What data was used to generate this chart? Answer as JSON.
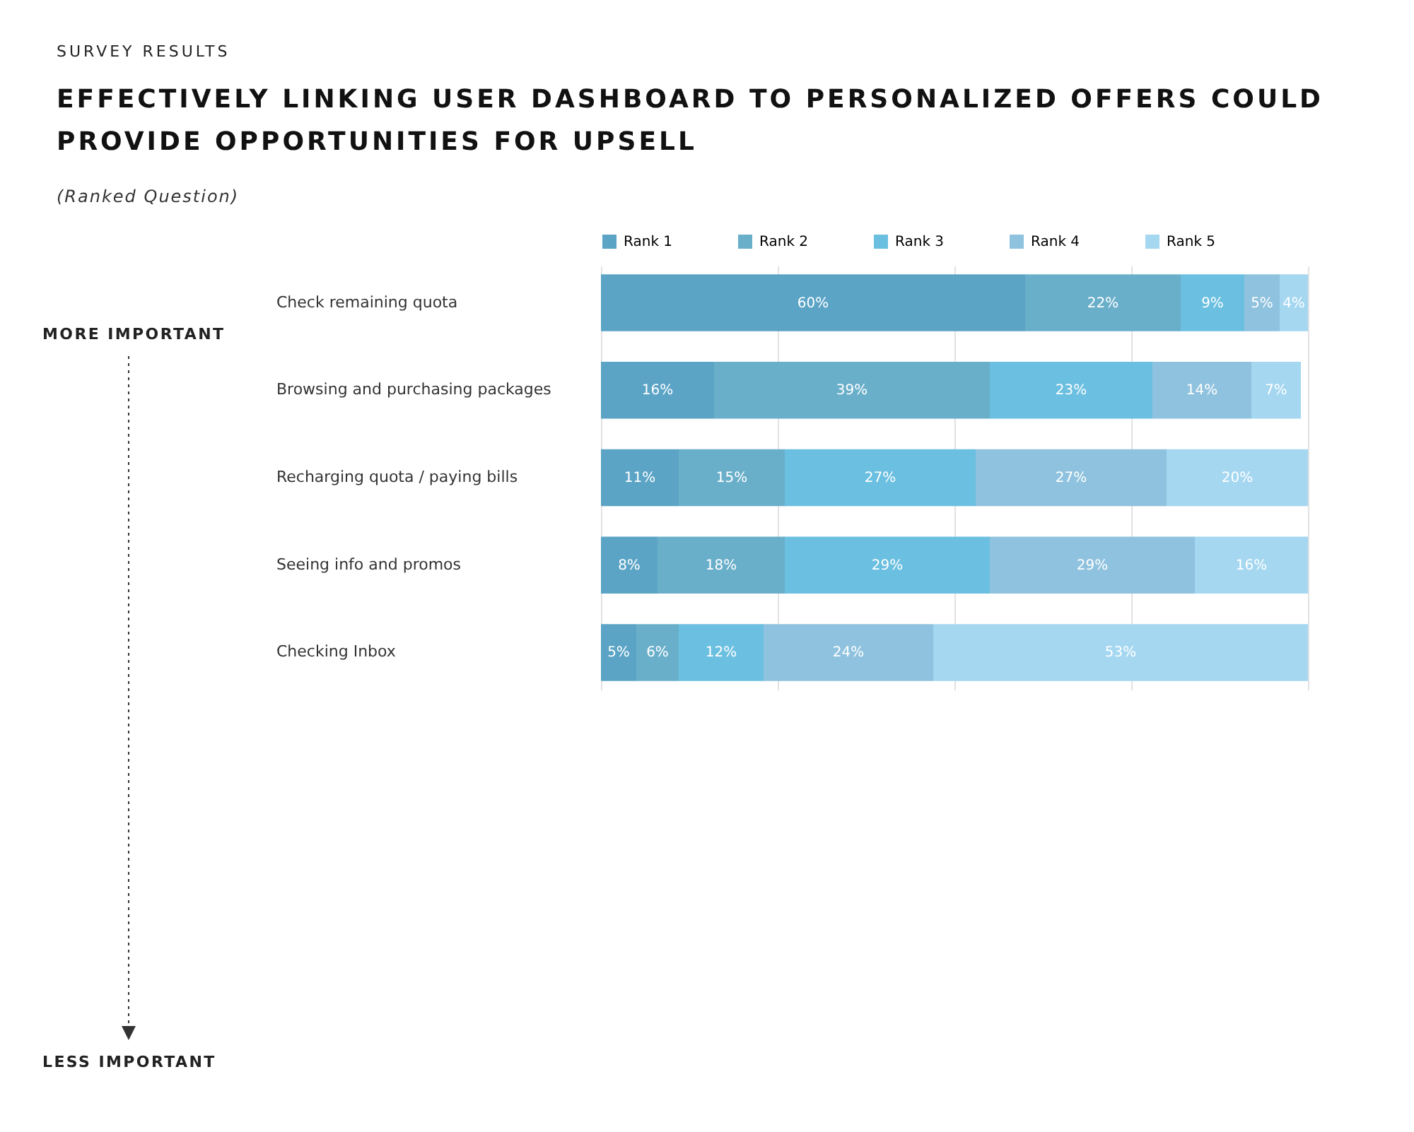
{
  "chart_data": {
    "type": "bar",
    "orientation": "horizontal",
    "stacked": true,
    "title": "EFFECTIVELY LINKING USER DASHBOARD TO PERSONALIZED OFFERS COULD PROVIDE OPPORTUNITIES FOR UPSELL",
    "subtitle": "(Ranked Question)",
    "annotations": [
      "SURVEY RESULTS",
      "MORE IMPORTANT",
      "LESS IMPORTANT"
    ],
    "categories": [
      "Check remaining quota",
      "Browsing and purchasing packages",
      "Recharging quota / paying bills",
      "Seeing info and promos",
      "Checking Inbox"
    ],
    "series": [
      {
        "name": "Rank 1",
        "color": "#5ba4c6",
        "values": [
          60,
          16,
          11,
          8,
          5
        ],
        "value_labels": [
          "60%",
          "16%",
          "11%",
          "8%",
          "5%"
        ]
      },
      {
        "name": "Rank 2",
        "color": "#6aafca",
        "values": [
          22,
          39,
          15,
          18,
          6
        ],
        "value_labels": [
          "22%",
          "39%",
          "15%",
          "18%",
          "6%"
        ]
      },
      {
        "name": "Rank 3",
        "color": "#6bbfe0",
        "values": [
          9,
          23,
          27,
          29,
          12
        ],
        "value_labels": [
          "9%",
          "23%",
          "27%",
          "29%",
          "12%"
        ]
      },
      {
        "name": "Rank 4",
        "color": "#8fc2de",
        "values": [
          5,
          14,
          27,
          29,
          24
        ],
        "value_labels": [
          "5%",
          "14%",
          "27%",
          "29%",
          "24%"
        ]
      },
      {
        "name": "Rank 5",
        "color": "#a5d7f1",
        "values": [
          4,
          7,
          20,
          16,
          53
        ],
        "value_labels": [
          "4%",
          "7%",
          "20%",
          "16%",
          "53%"
        ]
      }
    ],
    "xlim": [
      0,
      100
    ],
    "xticks": [
      {
        "value": 0,
        "label": null
      },
      {
        "value": 25,
        "label": null
      },
      {
        "value": 50,
        "label": null
      },
      {
        "value": 75,
        "label": null
      },
      {
        "value": 100,
        "label": null
      }
    ],
    "grid": "x",
    "legend": "top",
    "tick_labels": "y"
  }
}
